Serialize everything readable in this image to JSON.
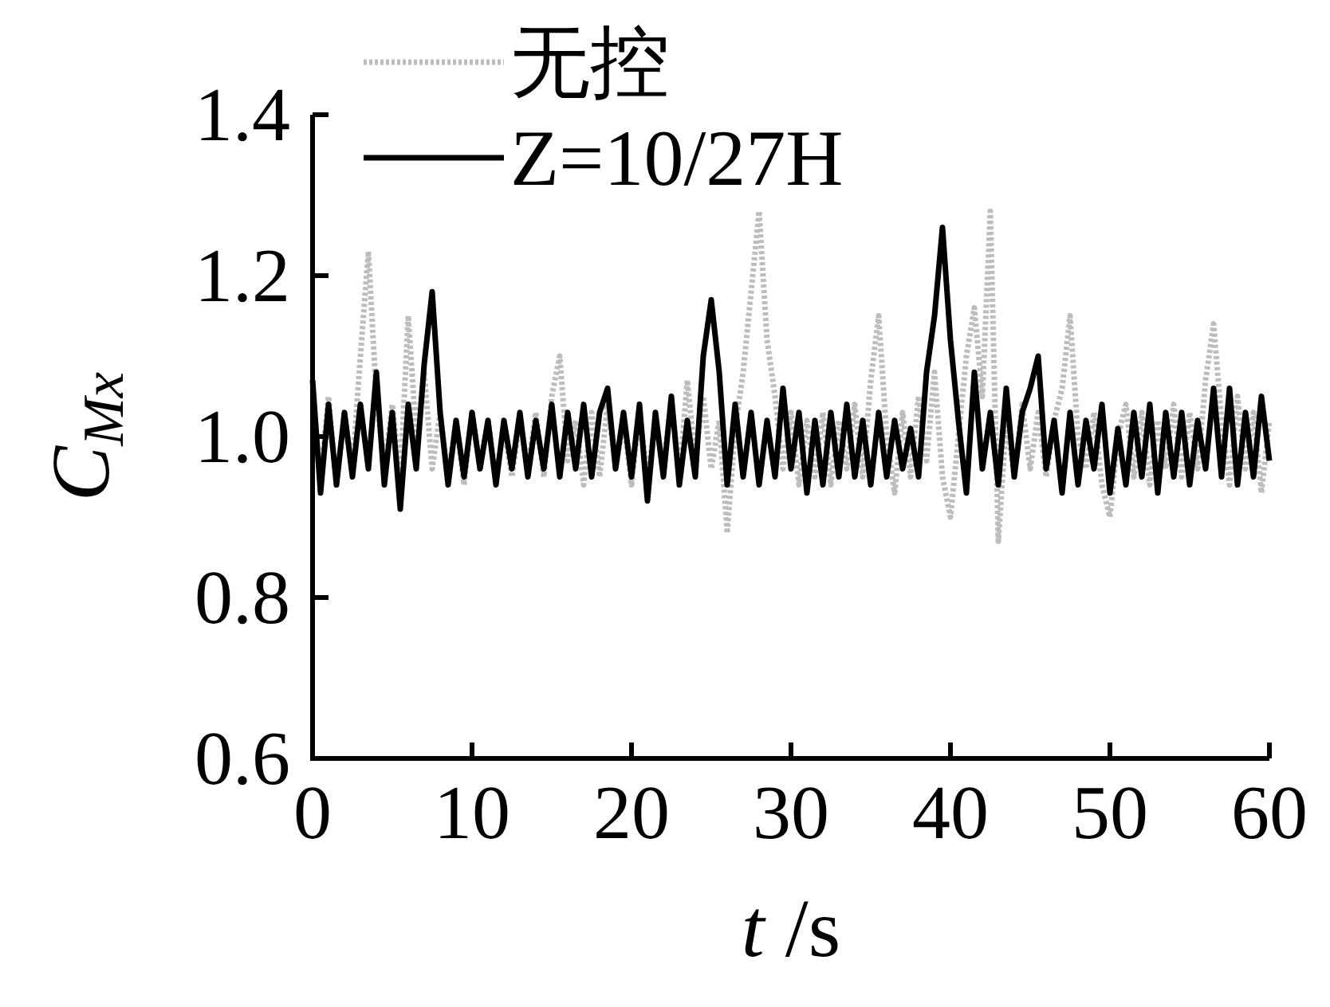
{
  "chart_data": {
    "type": "line",
    "xlabel": "*t* /s",
    "ylabel": "C$_{Mx}$",
    "xlim": [
      0,
      60
    ],
    "ylim": [
      0.6,
      1.4
    ],
    "xticks": [
      0,
      10,
      20,
      30,
      40,
      50,
      60
    ],
    "yticks": [
      {
        "value": 0.6,
        "label": "0.6"
      },
      {
        "value": 0.8,
        "label": "0.8"
      },
      {
        "value": 1.0,
        "label": "1.0"
      },
      {
        "value": 1.2,
        "label": "1.2"
      },
      {
        "value": 1.4,
        "label": "1.4"
      }
    ],
    "legend": "top",
    "grid": false,
    "x": [
      0,
      0.5,
      1,
      1.5,
      2,
      2.5,
      3,
      3.5,
      4,
      4.5,
      5,
      5.5,
      6,
      6.5,
      7,
      7.5,
      8,
      8.5,
      9,
      9.5,
      10,
      10.5,
      11,
      11.5,
      12,
      12.5,
      13,
      13.5,
      14,
      14.5,
      15,
      15.5,
      16,
      16.5,
      17,
      17.5,
      18,
      18.5,
      19,
      19.5,
      20,
      20.5,
      21,
      21.5,
      22,
      22.5,
      23,
      23.5,
      24,
      24.5,
      25,
      25.5,
      26,
      26.5,
      27,
      27.5,
      28,
      28.5,
      29,
      29.5,
      30,
      30.5,
      31,
      31.5,
      32,
      32.5,
      33,
      33.5,
      34,
      34.5,
      35,
      35.5,
      36,
      36.5,
      37,
      37.5,
      38,
      38.5,
      39,
      39.5,
      40,
      40.5,
      41,
      41.5,
      42,
      42.5,
      43,
      43.5,
      44,
      44.5,
      45,
      45.5,
      46,
      46.5,
      47,
      47.5,
      48,
      48.5,
      49,
      49.5,
      50,
      50.5,
      51,
      51.5,
      52,
      52.5,
      53,
      53.5,
      54,
      54.5,
      55,
      55.5,
      56,
      56.5,
      57,
      57.5,
      58,
      58.5,
      59,
      59.5,
      60
    ],
    "series": [
      {
        "name": "无控",
        "color": "#bdbdbd",
        "line_style": "dotted",
        "values": [
          1.02,
          0.95,
          1.05,
          0.94,
          1.03,
          0.96,
          1.1,
          1.23,
          1.05,
          0.96,
          1.04,
          0.95,
          1.15,
          1.0,
          1.08,
          0.96,
          1.03,
          0.95,
          1.02,
          0.94,
          1.03,
          0.96,
          1.02,
          0.95,
          1.01,
          0.95,
          1.02,
          0.96,
          1.03,
          0.95,
          1.05,
          1.1,
          0.97,
          1.02,
          0.94,
          1.03,
          0.95,
          1.04,
          0.96,
          1.02,
          0.94,
          1.03,
          0.95,
          1.02,
          0.96,
          1.05,
          0.95,
          1.07,
          0.97,
          1.05,
          0.96,
          1.02,
          0.88,
          1.01,
          1.08,
          1.18,
          1.28,
          1.12,
          1.05,
          0.96,
          1.03,
          0.94,
          1.02,
          0.95,
          1.03,
          0.94,
          1.02,
          0.96,
          1.04,
          0.95,
          1.07,
          1.15,
          1.0,
          0.93,
          1.03,
          0.95,
          1.05,
          0.97,
          1.08,
          0.95,
          0.9,
          1.0,
          1.1,
          1.16,
          1.05,
          1.28,
          0.87,
          1.02,
          0.95,
          1.04,
          0.96,
          1.03,
          0.95,
          1.02,
          1.06,
          1.15,
          1.0,
          0.96,
          1.03,
          0.94,
          0.9,
          1.0,
          1.04,
          0.95,
          1.03,
          0.94,
          1.02,
          0.96,
          1.04,
          0.95,
          1.03,
          0.96,
          1.07,
          1.14,
          1.02,
          0.94,
          1.05,
          0.96,
          1.03,
          0.93,
          1.02
        ]
      },
      {
        "name": "Z=10/27H",
        "color": "#000000",
        "line_style": "solid",
        "values": [
          1.07,
          0.93,
          1.04,
          0.94,
          1.03,
          0.95,
          1.04,
          0.96,
          1.08,
          0.94,
          1.03,
          0.91,
          1.04,
          0.96,
          1.09,
          1.18,
          1.03,
          0.94,
          1.02,
          0.95,
          1.03,
          0.96,
          1.02,
          0.94,
          1.02,
          0.96,
          1.03,
          0.95,
          1.02,
          0.96,
          1.04,
          0.95,
          1.03,
          0.96,
          1.04,
          0.95,
          1.03,
          1.06,
          0.96,
          1.03,
          0.95,
          1.04,
          0.92,
          1.03,
          0.95,
          1.05,
          0.94,
          1.02,
          0.95,
          1.1,
          1.17,
          1.08,
          0.94,
          1.04,
          0.95,
          1.03,
          0.94,
          1.02,
          0.95,
          1.06,
          0.96,
          1.03,
          0.93,
          1.02,
          0.94,
          1.03,
          0.95,
          1.04,
          0.95,
          1.02,
          0.94,
          1.03,
          0.95,
          1.02,
          0.96,
          1.01,
          0.95,
          1.08,
          1.15,
          1.26,
          1.12,
          1.02,
          0.93,
          1.08,
          0.96,
          1.03,
          0.94,
          1.06,
          0.95,
          1.03,
          1.06,
          1.1,
          0.96,
          1.02,
          0.93,
          1.03,
          0.94,
          1.02,
          0.96,
          1.04,
          0.93,
          1.01,
          0.94,
          1.03,
          0.95,
          1.04,
          0.93,
          1.03,
          0.95,
          1.03,
          0.94,
          1.02,
          0.96,
          1.06,
          0.95,
          1.06,
          0.94,
          1.03,
          0.95,
          1.05,
          0.97
        ]
      }
    ]
  }
}
